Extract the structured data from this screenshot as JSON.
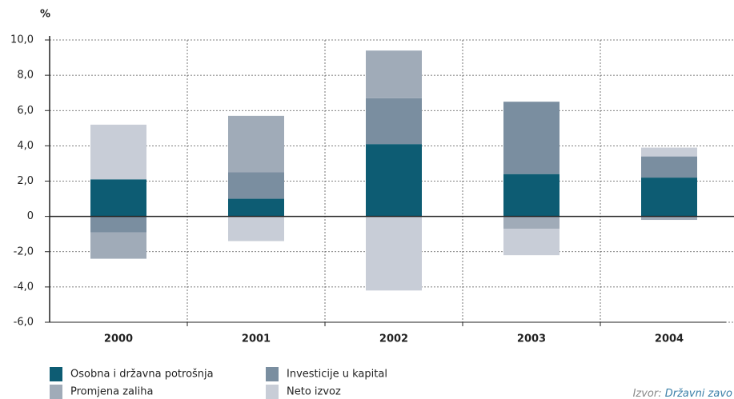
{
  "chart_data": {
    "type": "bar",
    "stacked": true,
    "ylabel": "%",
    "categories": [
      "2000",
      "2001",
      "2002",
      "2003",
      "2004"
    ],
    "series": [
      {
        "name": "Osobna i državna potrošnja",
        "color": "#0d5c73",
        "values": [
          2.1,
          1.0,
          4.1,
          2.4,
          2.2
        ]
      },
      {
        "name": "Investicije u kapital",
        "color": "#7a8ea0",
        "values": [
          -0.9,
          1.5,
          2.6,
          4.1,
          1.2
        ]
      },
      {
        "name": "Promjena zaliha",
        "color": "#a0abb8",
        "values": [
          -1.5,
          3.2,
          2.7,
          -0.7,
          -0.2
        ]
      },
      {
        "name": "Neto izvoz",
        "color": "#c8cdd7",
        "values": [
          3.1,
          -1.4,
          -4.2,
          -1.5,
          0.5
        ]
      }
    ],
    "ylim": [
      -6,
      10
    ],
    "yticks": [
      {
        "value": -6,
        "label": "-6,0"
      },
      {
        "value": -4,
        "label": "-4,0"
      },
      {
        "value": -2,
        "label": "-2,0"
      },
      0,
      {
        "value": 2,
        "label": "2,0"
      },
      {
        "value": 4,
        "label": "4,0"
      },
      {
        "value": 6,
        "label": "6,0"
      },
      {
        "value": 8,
        "label": "8,0"
      },
      {
        "value": 10,
        "label": "10,0"
      }
    ],
    "grid": true,
    "source_label": "Izvor:",
    "source": "Državni zavo"
  }
}
